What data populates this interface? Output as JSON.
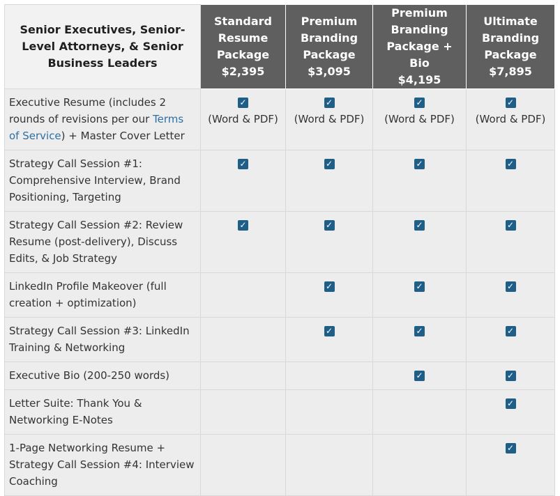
{
  "header": {
    "corner_title": "Senior Executives, Senior-Level Attorneys, & Senior Business Leaders",
    "plans": [
      {
        "name": [
          "Standard",
          "Resume",
          "Package"
        ],
        "price": "$2,395"
      },
      {
        "name": [
          "Premium",
          "Branding",
          "Package"
        ],
        "price": "$3,095"
      },
      {
        "name": [
          "Premium",
          "Branding",
          "Package + Bio"
        ],
        "price": "$4,195"
      },
      {
        "name": [
          "Ultimate",
          "Branding",
          "Package"
        ],
        "price": "$7,895"
      }
    ]
  },
  "rows": [
    {
      "feature_before": "Executive Resume (includes 2 rounds of revisions per our ",
      "feature_link": "Terms of Service",
      "feature_after": ") + Master Cover Letter",
      "checks": [
        true,
        true,
        true,
        true
      ],
      "note": "(Word & PDF)"
    },
    {
      "feature": "Strategy Call Session #1: Comprehensive Interview, Brand Positioning, Targeting",
      "checks": [
        true,
        true,
        true,
        true
      ]
    },
    {
      "feature": "Strategy Call Session #2: Review Resume (post-delivery), Discuss Edits, & Job Strategy",
      "checks": [
        true,
        true,
        true,
        true
      ]
    },
    {
      "feature": "LinkedIn Profile Makeover (full creation + optimization)",
      "checks": [
        false,
        true,
        true,
        true
      ]
    },
    {
      "feature": "Strategy Call Session #3: LinkedIn Training & Networking",
      "checks": [
        false,
        true,
        true,
        true
      ]
    },
    {
      "feature": "Executive Bio (200-250 words)",
      "checks": [
        false,
        false,
        true,
        true
      ]
    },
    {
      "feature": "Letter Suite: Thank You & Networking E-Notes",
      "checks": [
        false,
        false,
        false,
        true
      ]
    },
    {
      "feature": "1-Page Networking Resume + Strategy Call Session #4: Interview Coaching",
      "checks": [
        false,
        false,
        false,
        true
      ]
    }
  ],
  "icons": {
    "check": "checkbox-checked-icon",
    "check_color": "#1f5f87"
  }
}
